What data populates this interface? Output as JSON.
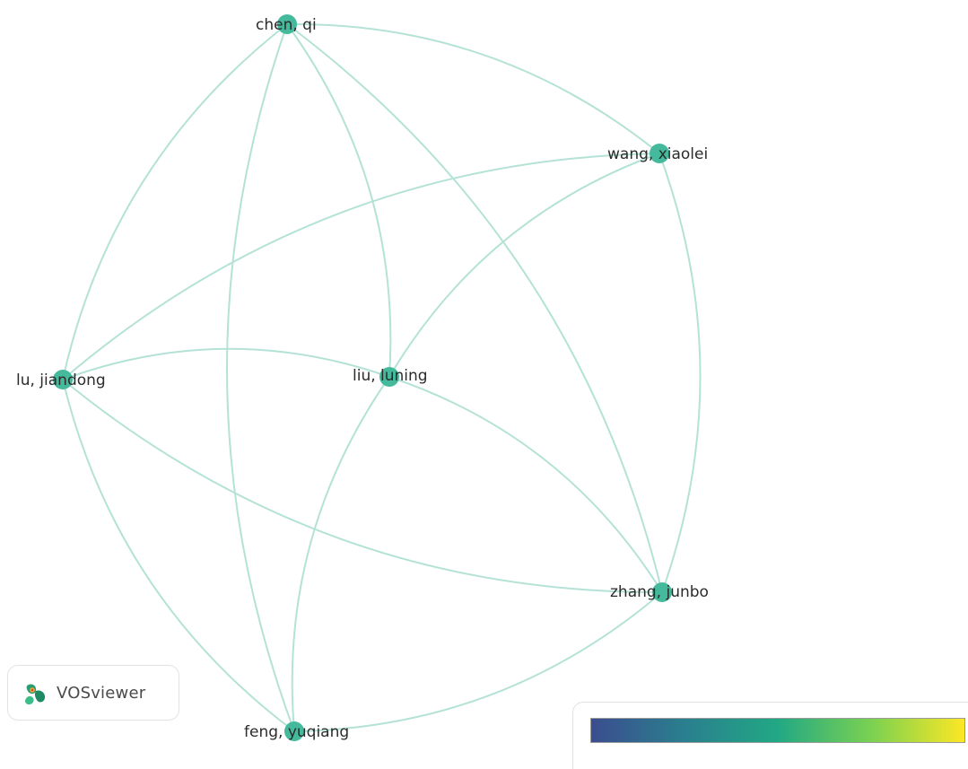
{
  "nodes": [
    {
      "id": "chen-qi",
      "label": "chen, qi",
      "color": "#45b99c"
    },
    {
      "id": "wang-xiaolei",
      "label": "wang, xiaolei",
      "color": "#45b99c"
    },
    {
      "id": "lu-jiandong",
      "label": "lu, jiandong",
      "color": "#45b99c"
    },
    {
      "id": "liu-luning",
      "label": "liu, luning",
      "color": "#45b99c"
    },
    {
      "id": "zhang-junbo",
      "label": "zhang, junbo",
      "color": "#45b99c"
    },
    {
      "id": "feng-yuqiang",
      "label": "feng, yuqiang",
      "color": "#45b99c"
    }
  ],
  "edges": [
    [
      "chen-qi",
      "wang-xiaolei"
    ],
    [
      "chen-qi",
      "lu-jiandong"
    ],
    [
      "chen-qi",
      "liu-luning"
    ],
    [
      "chen-qi",
      "zhang-junbo"
    ],
    [
      "chen-qi",
      "feng-yuqiang"
    ],
    [
      "wang-xiaolei",
      "lu-jiandong"
    ],
    [
      "wang-xiaolei",
      "liu-luning"
    ],
    [
      "wang-xiaolei",
      "zhang-junbo"
    ],
    [
      "lu-jiandong",
      "liu-luning"
    ],
    [
      "lu-jiandong",
      "zhang-junbo"
    ],
    [
      "lu-jiandong",
      "feng-yuqiang"
    ],
    [
      "liu-luning",
      "zhang-junbo"
    ],
    [
      "liu-luning",
      "feng-yuqiang"
    ],
    [
      "zhang-junbo",
      "feng-yuqiang"
    ]
  ],
  "edge_color": "#b4e2d6",
  "brand": {
    "name": "VOSviewer",
    "logo_icon": "vosviewer-logo-icon"
  },
  "legend": {
    "colormap": [
      "#3b4d8f",
      "#2a7f8e",
      "#22a884",
      "#7ad151",
      "#fde725"
    ]
  }
}
